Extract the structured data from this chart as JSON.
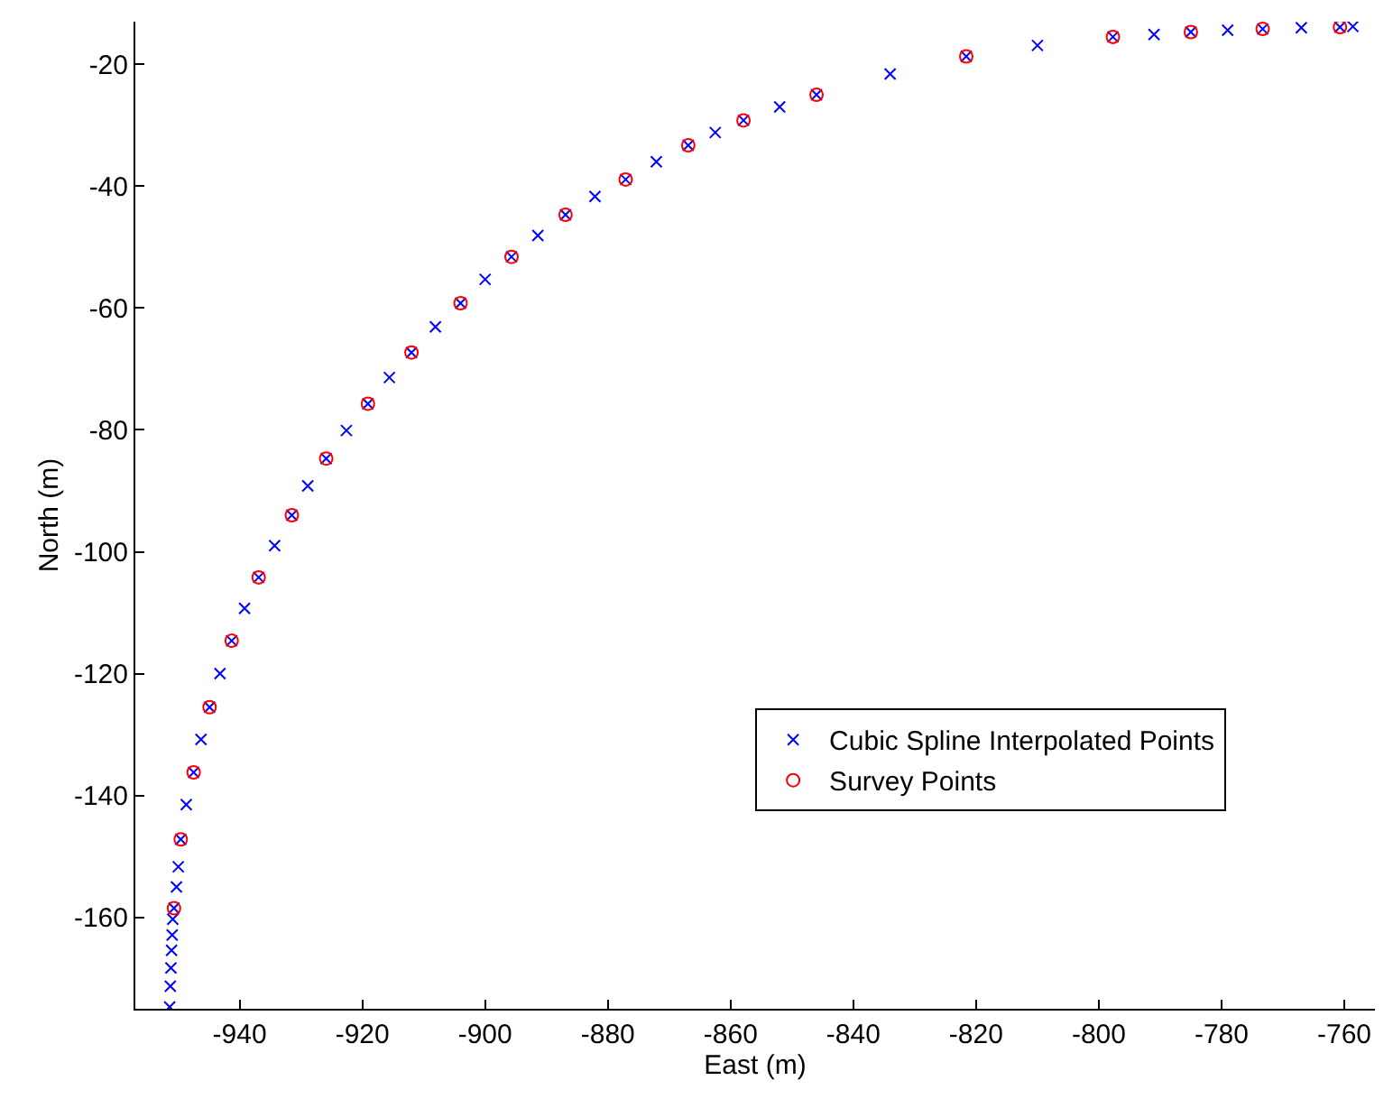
{
  "chart_data": {
    "type": "scatter",
    "xlabel": "East (m)",
    "ylabel": "North (m)",
    "xlim": [
      -957,
      -755
    ],
    "ylim": [
      -175,
      -13
    ],
    "xticks": [
      -940,
      -920,
      -900,
      -880,
      -860,
      -840,
      -820,
      -800,
      -780,
      -760
    ],
    "yticks": [
      -160,
      -140,
      -120,
      -100,
      -80,
      -60,
      -40,
      -20
    ],
    "legend": "bottom right",
    "series": [
      {
        "name": "Cubic Spline Interpolated Points",
        "color": "#0000ff",
        "marker": "cross",
        "x": [
          -951.4,
          -951.3,
          -951.2,
          -951.1,
          -951.0,
          -950.9,
          -950.7,
          -950.3,
          -950.0,
          -949.6,
          -948.7,
          -947.5,
          -946.3,
          -944.9,
          -943.2,
          -941.3,
          -939.2,
          -936.9,
          -934.3,
          -931.5,
          -928.9,
          -925.9,
          -922.6,
          -919.1,
          -915.6,
          -912.0,
          -908.1,
          -904.0,
          -900.0,
          -895.7,
          -891.4,
          -886.9,
          -882.1,
          -877.1,
          -872.1,
          -866.9,
          -862.5,
          -857.9,
          -852.0,
          -846.0,
          -834.0,
          -821.6,
          -810.0,
          -797.7,
          -791.0,
          -785.0,
          -779.0,
          -773.3,
          -767.0,
          -760.7,
          -758.6
        ],
        "values": [
          -174.7,
          -171.3,
          -168.3,
          -165.4,
          -162.9,
          -160.3,
          -158.5,
          -155.0,
          -151.7,
          -147.2,
          -141.5,
          -136.2,
          -130.8,
          -125.5,
          -120.0,
          -114.6,
          -109.3,
          -104.2,
          -99.0,
          -94.0,
          -89.2,
          -84.7,
          -80.1,
          -75.7,
          -71.4,
          -67.3,
          -63.1,
          -59.2,
          -55.3,
          -51.6,
          -48.1,
          -44.7,
          -41.7,
          -38.9,
          -36.0,
          -33.3,
          -31.2,
          -29.2,
          -27.0,
          -25.0,
          -21.6,
          -18.7,
          -16.9,
          -15.5,
          -15.1,
          -14.7,
          -14.4,
          -14.2,
          -14.0,
          -13.9,
          -13.8
        ]
      },
      {
        "name": "Survey Points",
        "color": "#ff0000",
        "marker": "circle",
        "x": [
          -950.7,
          -949.6,
          -947.5,
          -944.9,
          -941.3,
          -936.9,
          -931.5,
          -925.9,
          -919.1,
          -912.0,
          -904.0,
          -895.7,
          -886.9,
          -877.1,
          -866.9,
          -857.9,
          -846.0,
          -821.6,
          -797.7,
          -785.0,
          -773.3,
          -760.7
        ],
        "values": [
          -158.5,
          -147.2,
          -136.2,
          -125.5,
          -114.6,
          -104.2,
          -94.0,
          -84.7,
          -75.7,
          -67.3,
          -59.2,
          -51.6,
          -44.7,
          -38.9,
          -33.3,
          -29.2,
          -25.0,
          -18.7,
          -15.5,
          -14.7,
          -14.2,
          -13.9
        ]
      }
    ]
  }
}
